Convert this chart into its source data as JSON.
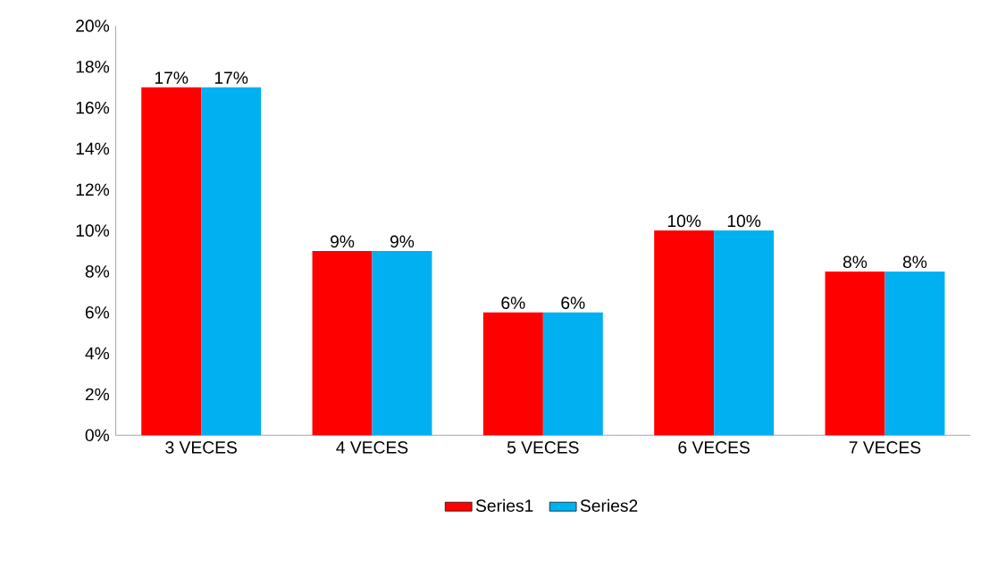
{
  "chart_data": {
    "type": "bar",
    "categories": [
      "3 VECES",
      "4 VECES",
      "5 VECES",
      "6 VECES",
      "7 VECES"
    ],
    "series": [
      {
        "name": "Series1",
        "color": "#ff0000",
        "values": [
          17,
          9,
          6,
          10,
          8
        ],
        "value_labels": [
          "17%",
          "9%",
          "6%",
          "10%",
          "8%"
        ]
      },
      {
        "name": "Series2",
        "color": "#00b0f0",
        "values": [
          17,
          9,
          6,
          10,
          8
        ],
        "value_labels": [
          "17%",
          "9%",
          "6%",
          "10%",
          "8%"
        ]
      }
    ],
    "ylim": [
      0,
      20
    ],
    "yticks": [
      {
        "value": 0,
        "label": "0%"
      },
      {
        "value": 2,
        "label": "2%"
      },
      {
        "value": 4,
        "label": "4%"
      },
      {
        "value": 6,
        "label": "6%"
      },
      {
        "value": 8,
        "label": "8%"
      },
      {
        "value": 10,
        "label": "10%"
      },
      {
        "value": 12,
        "label": "12%"
      },
      {
        "value": 14,
        "label": "14%"
      },
      {
        "value": 16,
        "label": "16%"
      },
      {
        "value": 18,
        "label": "18%"
      },
      {
        "value": 20,
        "label": "20%"
      }
    ],
    "grid": false,
    "legend": "bottom"
  }
}
